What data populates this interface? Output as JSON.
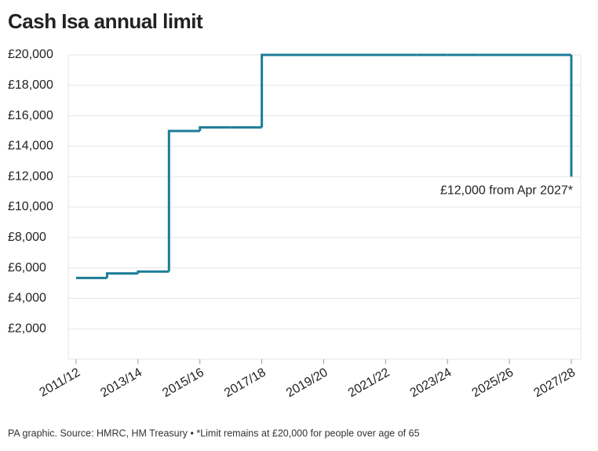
{
  "chart_data": {
    "type": "step",
    "title": "Cash Isa annual limit",
    "categories": [
      "2011/12",
      null,
      "2013/14",
      null,
      "2015/16",
      null,
      "2017/18",
      null,
      "2019/20",
      null,
      "2021/22",
      null,
      "2023/24",
      null,
      "2025/26",
      null,
      "2027/28"
    ],
    "values": [
      5340,
      5640,
      5760,
      15000,
      15240,
      15240,
      20000,
      20000,
      20000,
      20000,
      20000,
      20000,
      20000,
      20000,
      20000,
      20000,
      12000
    ],
    "color": "#1b7d97",
    "ylim": [
      0,
      20000
    ],
    "yticks": [
      {
        "value": 2000,
        "label": "£2,000"
      },
      {
        "value": 4000,
        "label": "£4,000"
      },
      {
        "value": 6000,
        "label": "£6,000"
      },
      {
        "value": 8000,
        "label": "£8,000"
      },
      {
        "value": 10000,
        "label": "£10,000"
      },
      {
        "value": 12000,
        "label": "£12,000"
      },
      {
        "value": 14000,
        "label": "£14,000"
      },
      {
        "value": 16000,
        "label": "£16,000"
      },
      {
        "value": 18000,
        "label": "£18,000"
      },
      {
        "value": 20000,
        "label": "£20,000"
      }
    ],
    "grid": true,
    "annotation": "£12,000 from Apr 2027*",
    "footer": "PA graphic. Source: HMRC, HM Treasury • *Limit remains at £20,000 for people over age of 65"
  }
}
